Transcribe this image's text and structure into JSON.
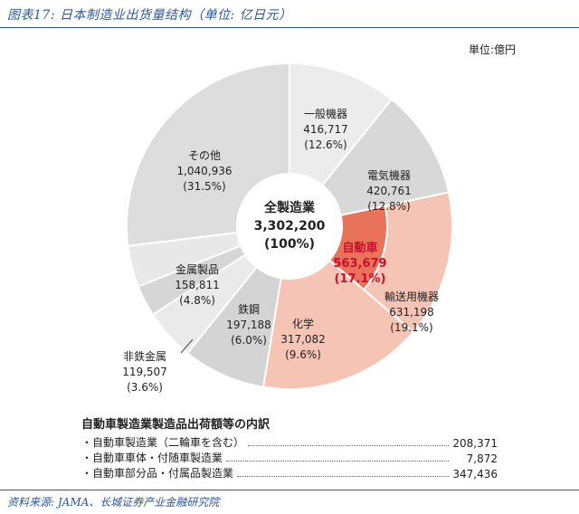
{
  "figure": {
    "title": "图表17:  日本制造业出货量结构（单位:  亿日元）",
    "source": "资料来源:  JAMA、长城证券产业金融研究院"
  },
  "unit_label": "単位:億円",
  "chart_data": {
    "type": "pie",
    "center_label": {
      "name": "全製造業",
      "value": "3,302,200",
      "pct": "(100%)"
    },
    "slices": [
      {
        "name": "一般機器",
        "value": 416717,
        "value_text": "416,717",
        "pct": "(12.6%)",
        "color": "#ececec"
      },
      {
        "name": "電気機器",
        "value": 420761,
        "value_text": "420,761",
        "pct": "(12.8%)",
        "color": "#d8d8d8"
      },
      {
        "name": "自動車",
        "value": 563679,
        "value_text": "563,679",
        "pct": "(17.1%)",
        "color": "#e8735a"
      },
      {
        "name": "輸送用機器",
        "value": 631198,
        "value_text": "631,198",
        "pct": "(19.1%)",
        "color": "#f6c4b5"
      },
      {
        "name": "化学",
        "value": 317082,
        "value_text": "317,082",
        "pct": "(9.6%)",
        "color": "#d4d4d4"
      },
      {
        "name": "鉄鋼",
        "value": 197188,
        "value_text": "197,188",
        "pct": "(6.0%)",
        "color": "#eaeaea"
      },
      {
        "name": "非鉄金属",
        "value": 119507,
        "value_text": "119,507",
        "pct": "(3.6%)",
        "color": "#d6d6d6"
      },
      {
        "name": "金属製品",
        "value": 158811,
        "value_text": "158,811",
        "pct": "(4.8%)",
        "color": "#e8e8e8"
      },
      {
        "name": "その他",
        "value": 1040936,
        "value_text": "1,040,936",
        "pct": "(31.5%)",
        "color": "#dddddd"
      }
    ]
  },
  "breakdown": {
    "title": "自動車製造業製造品出荷額等の内訳",
    "rows": [
      {
        "label": "・自動車製造業（二輪車を含む）",
        "value": "208,371"
      },
      {
        "label": "・自動車車体・付随車製造業",
        "value": "7,872"
      },
      {
        "label": "・自動車部分品・付属品製造業",
        "value": "347,436"
      }
    ]
  }
}
